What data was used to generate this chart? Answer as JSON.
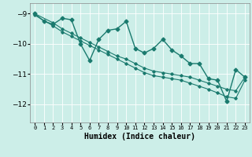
{
  "xlabel": "Humidex (Indice chaleur)",
  "bg_color": "#cceee8",
  "line_color": "#1a7a6e",
  "grid_color": "#ffffff",
  "xlim": [
    -0.5,
    23.5
  ],
  "ylim": [
    -12.6,
    -8.65
  ],
  "yticks": [
    -12,
    -11,
    -10,
    -9
  ],
  "xticks": [
    0,
    1,
    2,
    3,
    4,
    5,
    6,
    7,
    8,
    9,
    10,
    11,
    12,
    13,
    14,
    15,
    16,
    17,
    18,
    19,
    20,
    21,
    22,
    23
  ],
  "zigzag_x": [
    0,
    1,
    2,
    3,
    4,
    5,
    6,
    7,
    8,
    9,
    10,
    11,
    12,
    13,
    14,
    15,
    16,
    17,
    18,
    19,
    20,
    21,
    22,
    23
  ],
  "zigzag_y": [
    -9.0,
    -9.25,
    -9.35,
    -9.15,
    -9.2,
    -10.0,
    -10.55,
    -9.85,
    -9.55,
    -9.5,
    -9.25,
    -10.15,
    -10.3,
    -10.15,
    -9.85,
    -10.2,
    -10.4,
    -10.65,
    -10.65,
    -11.15,
    -11.2,
    -11.9,
    -10.85,
    -11.1
  ],
  "trend1_x": [
    0,
    2,
    3,
    4,
    5,
    6,
    7,
    8,
    9,
    10,
    11,
    12,
    13,
    14,
    15,
    16,
    17,
    18,
    19,
    20,
    21,
    22,
    23
  ],
  "trend1_y": [
    -9.0,
    -9.3,
    -9.5,
    -9.65,
    -9.8,
    -9.95,
    -10.1,
    -10.25,
    -10.4,
    -10.5,
    -10.65,
    -10.8,
    -10.9,
    -10.95,
    -11.0,
    -11.05,
    -11.1,
    -11.2,
    -11.3,
    -11.4,
    -11.5,
    -11.55,
    -11.1
  ],
  "trend2_x": [
    0,
    2,
    3,
    4,
    5,
    6,
    7,
    8,
    9,
    10,
    11,
    12,
    13,
    14,
    15,
    16,
    17,
    18,
    19,
    20,
    21,
    22,
    23
  ],
  "trend2_y": [
    -9.05,
    -9.4,
    -9.6,
    -9.75,
    -9.9,
    -10.05,
    -10.2,
    -10.35,
    -10.5,
    -10.65,
    -10.8,
    -10.95,
    -11.05,
    -11.1,
    -11.15,
    -11.2,
    -11.3,
    -11.4,
    -11.5,
    -11.62,
    -11.75,
    -11.8,
    -11.2
  ]
}
